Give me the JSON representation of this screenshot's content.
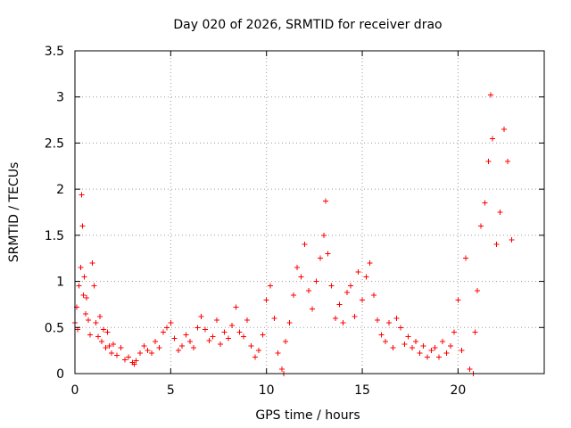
{
  "chart_data": {
    "type": "scatter",
    "title": "Day 020 of 2026, SRMTID for receiver drao",
    "xlabel": "GPS time / hours",
    "ylabel": "SRMTID / TECUs",
    "xlim": [
      0,
      24.5
    ],
    "ylim": [
      0,
      3.5
    ],
    "x_ticks": [
      0,
      5,
      10,
      15,
      20
    ],
    "x_tick_labels": [
      "0",
      "5",
      "10",
      "15",
      "20"
    ],
    "y_ticks": [
      0,
      0.5,
      1,
      1.5,
      2,
      2.5,
      3,
      3.5
    ],
    "y_tick_labels": [
      "0",
      "0.5",
      "1",
      "1.5",
      "2",
      "2.5",
      "3",
      "3.5"
    ],
    "grid": true,
    "marker": "+",
    "series": [
      {
        "name": "SRMTID",
        "color": "#ff0000",
        "x": [
          0,
          0.1,
          0.15,
          0.2,
          0.3,
          0.35,
          0.4,
          0.45,
          0.5,
          0.55,
          0.6,
          0.7,
          0.8,
          0.9,
          1.0,
          1.1,
          1.2,
          1.3,
          1.4,
          1.5,
          1.6,
          1.7,
          1.8,
          1.9,
          2.0,
          2.2,
          2.4,
          2.6,
          2.8,
          3.0,
          3.1,
          3.2,
          3.4,
          3.6,
          3.8,
          4.0,
          4.2,
          4.4,
          4.6,
          4.8,
          5.0,
          5.2,
          5.4,
          5.6,
          5.8,
          6.0,
          6.2,
          6.4,
          6.6,
          6.8,
          7.0,
          7.2,
          7.4,
          7.6,
          7.8,
          8.0,
          8.2,
          8.4,
          8.6,
          8.8,
          9.0,
          9.2,
          9.4,
          9.6,
          9.8,
          10.0,
          10.2,
          10.4,
          10.6,
          10.8,
          10.9,
          11.0,
          11.2,
          11.4,
          11.6,
          11.8,
          12.0,
          12.2,
          12.4,
          12.6,
          12.8,
          13.0,
          13.1,
          13.2,
          13.4,
          13.6,
          13.8,
          14.0,
          14.2,
          14.4,
          14.6,
          14.8,
          15.0,
          15.2,
          15.4,
          15.6,
          15.8,
          16.0,
          16.2,
          16.4,
          16.6,
          16.8,
          17.0,
          17.2,
          17.4,
          17.6,
          17.8,
          18.0,
          18.2,
          18.4,
          18.6,
          18.8,
          19.0,
          19.2,
          19.4,
          19.6,
          19.8,
          20.0,
          20.2,
          20.4,
          20.6,
          20.8,
          20.9,
          21.0,
          21.2,
          21.4,
          21.6,
          21.7,
          21.8,
          22.0,
          22.2,
          22.4,
          22.6,
          22.8
        ],
        "y": [
          0.55,
          0.72,
          0.48,
          0.95,
          1.15,
          1.94,
          1.6,
          0.85,
          1.05,
          0.65,
          0.82,
          0.58,
          0.42,
          1.2,
          0.95,
          0.55,
          0.4,
          0.62,
          0.35,
          0.48,
          0.28,
          0.45,
          0.3,
          0.22,
          0.32,
          0.2,
          0.28,
          0.15,
          0.18,
          0.12,
          0.1,
          0.14,
          0.22,
          0.3,
          0.25,
          0.22,
          0.35,
          0.28,
          0.45,
          0.5,
          0.55,
          0.38,
          0.25,
          0.3,
          0.42,
          0.35,
          0.28,
          0.5,
          0.62,
          0.48,
          0.36,
          0.4,
          0.58,
          0.32,
          0.45,
          0.38,
          0.52,
          0.72,
          0.45,
          0.4,
          0.58,
          0.3,
          0.18,
          0.25,
          0.42,
          0.8,
          0.95,
          0.6,
          0.22,
          0.05,
          0.0,
          0.35,
          0.55,
          0.85,
          1.15,
          1.05,
          1.4,
          0.9,
          0.7,
          1.0,
          1.25,
          1.5,
          1.87,
          1.3,
          0.95,
          0.6,
          0.75,
          0.55,
          0.88,
          0.95,
          0.62,
          1.1,
          0.8,
          1.05,
          1.2,
          0.85,
          0.58,
          0.42,
          0.35,
          0.55,
          0.28,
          0.6,
          0.5,
          0.32,
          0.4,
          0.28,
          0.35,
          0.22,
          0.3,
          0.18,
          0.25,
          0.28,
          0.18,
          0.35,
          0.22,
          0.3,
          0.45,
          0.8,
          0.25,
          1.25,
          0.05,
          0.0,
          0.45,
          0.9,
          1.6,
          1.85,
          2.3,
          3.02,
          2.55,
          1.4,
          1.75,
          2.65,
          2.3,
          1.45
        ]
      }
    ]
  }
}
